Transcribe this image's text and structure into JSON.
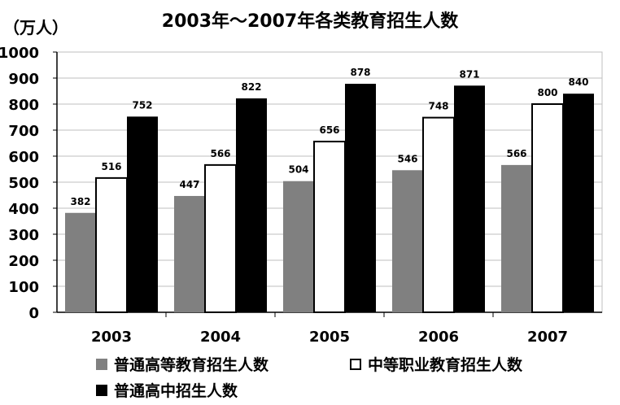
{
  "chart_data": {
    "type": "bar",
    "title": "2003年～2007年各类教育招生人数",
    "unit_label": "（万人）",
    "categories": [
      "2003",
      "2004",
      "2005",
      "2006",
      "2007"
    ],
    "ylim": [
      0,
      1000
    ],
    "yticks": [
      "0",
      "100",
      "200",
      "300",
      "400",
      "500",
      "600",
      "700",
      "800",
      "900",
      "1000"
    ],
    "grid": "horizontal",
    "legend_position": "bottom",
    "series": [
      {
        "name": "普通高等教育招生人数",
        "values": [
          382,
          447,
          504,
          546,
          566
        ],
        "color": "#808080"
      },
      {
        "name": "中等职业教育招生人数",
        "values": [
          516,
          566,
          656,
          748,
          800
        ],
        "color": "#ffffff"
      },
      {
        "name": "普通高中招生人数",
        "values": [
          752,
          822,
          878,
          871,
          840
        ],
        "color": "#000000"
      }
    ]
  }
}
